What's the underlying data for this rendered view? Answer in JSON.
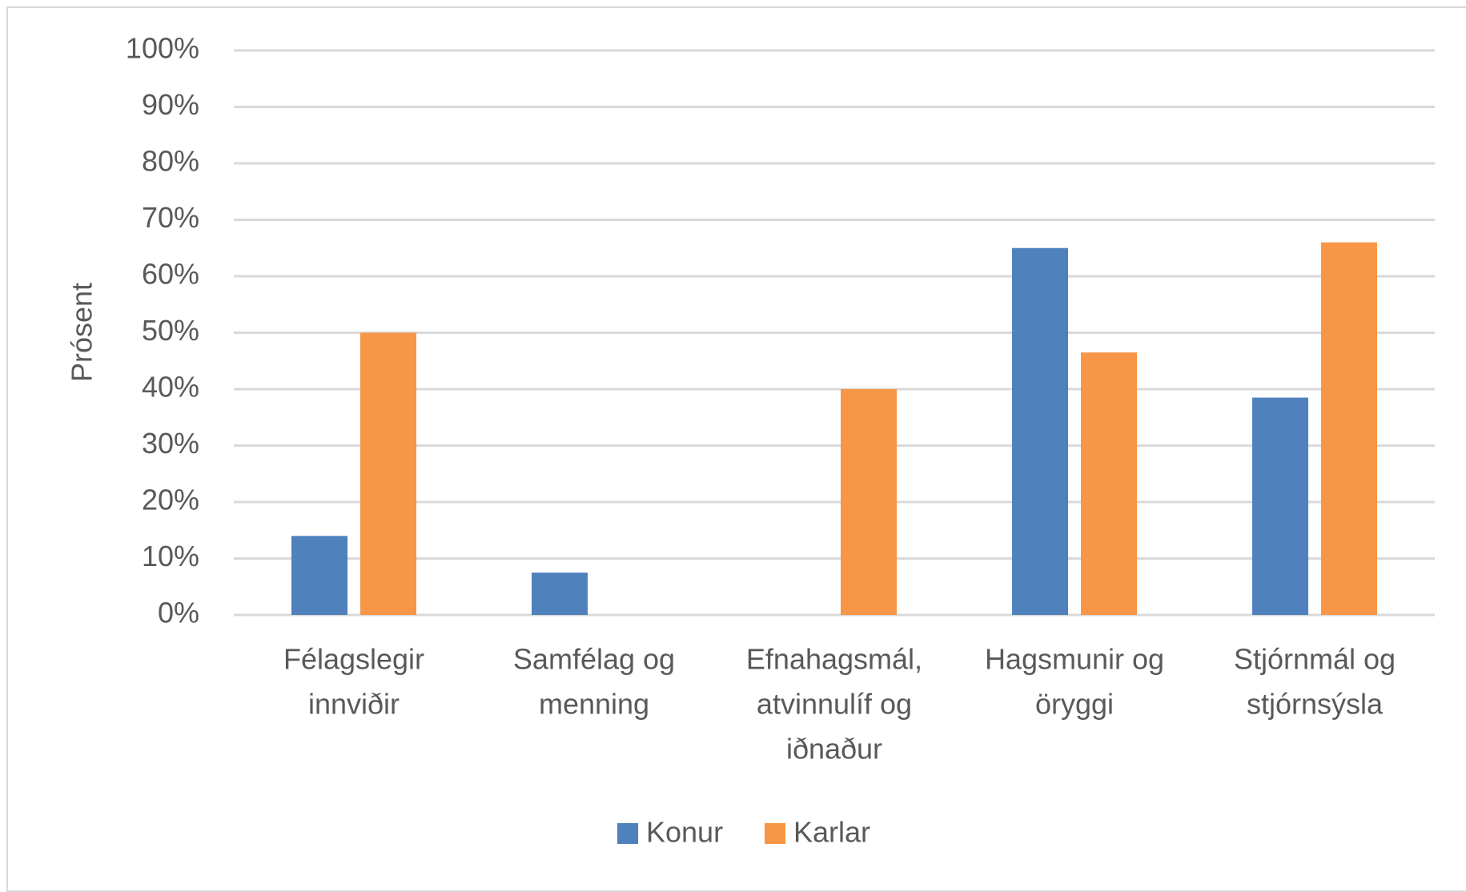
{
  "chart_data": {
    "type": "bar",
    "y_label": "Prósent",
    "categories": [
      [
        "Félagslegir",
        "innviðir"
      ],
      [
        "Samfélag og",
        "menning"
      ],
      [
        "Efnahagsmál,",
        "atvinnulíf og",
        "iðnaður"
      ],
      [
        "Hagsmunir og",
        "öryggi"
      ],
      [
        "Stjórnmál og",
        "stjórnsýsla"
      ]
    ],
    "series": [
      {
        "name": "Konur",
        "color": "#4f81bd",
        "values": [
          14,
          7.5,
          0,
          65,
          38.5
        ]
      },
      {
        "name": "Karlar",
        "color": "#f79646",
        "values": [
          50,
          0,
          40,
          46.5,
          66
        ]
      }
    ],
    "ylim": [
      0,
      100
    ],
    "yticks": [
      {
        "value": 0,
        "label": "0%"
      },
      {
        "value": 10,
        "label": "10%"
      },
      {
        "value": 20,
        "label": "20%"
      },
      {
        "value": 30,
        "label": "30%"
      },
      {
        "value": 40,
        "label": "40%"
      },
      {
        "value": 50,
        "label": "50%"
      },
      {
        "value": 60,
        "label": "60%"
      },
      {
        "value": 70,
        "label": "70%"
      },
      {
        "value": 80,
        "label": "80%"
      },
      {
        "value": 90,
        "label": "90%"
      },
      {
        "value": 100,
        "label": "100%"
      }
    ],
    "grid": true,
    "legend": "bottom"
  }
}
